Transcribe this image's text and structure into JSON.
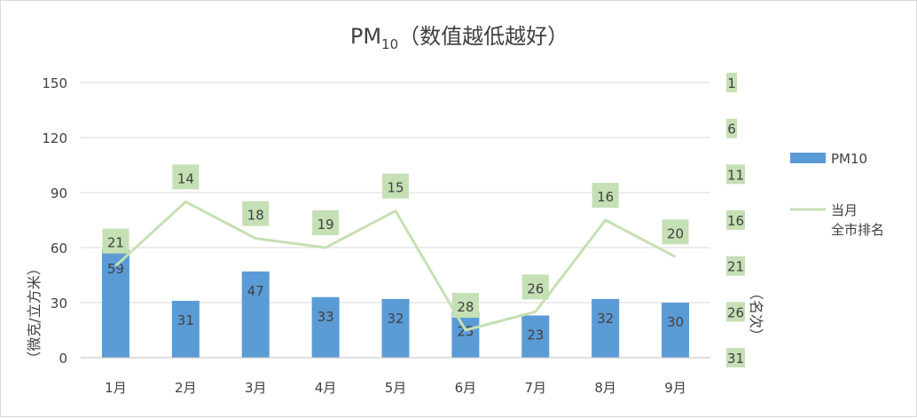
{
  "chart_data": {
    "type": "bar",
    "title": {
      "main": "PM",
      "sub": "10",
      "rest": "（数值越低越好）"
    },
    "categories": [
      "1月",
      "2月",
      "3月",
      "4月",
      "5月",
      "6月",
      "7月",
      "8月",
      "9月"
    ],
    "series": [
      {
        "name": "PM10",
        "type": "bar",
        "axis": "left",
        "color": "#5b9bd5",
        "values": [
          59,
          31,
          47,
          33,
          32,
          25,
          23,
          32,
          30
        ]
      },
      {
        "name": "当月全市排名",
        "name_lines": [
          "当月",
          "全市排名"
        ],
        "type": "line",
        "axis": "right",
        "color": "#c5e0b4",
        "values": [
          21,
          14,
          18,
          19,
          15,
          28,
          26,
          16,
          20
        ]
      }
    ],
    "y_left": {
      "label": "（微克/立方米）",
      "min": 0,
      "max": 150,
      "ticks": [
        "0",
        "30",
        "60",
        "90",
        "120",
        "150"
      ]
    },
    "y_right": {
      "label": "（名次）",
      "reversed": true,
      "min": 1,
      "max": 31,
      "ticks": [
        "1",
        "6",
        "11",
        "16",
        "21",
        "26",
        "31"
      ]
    },
    "grid": true,
    "legend": "right",
    "label_box_color": "#c5e0b4"
  }
}
